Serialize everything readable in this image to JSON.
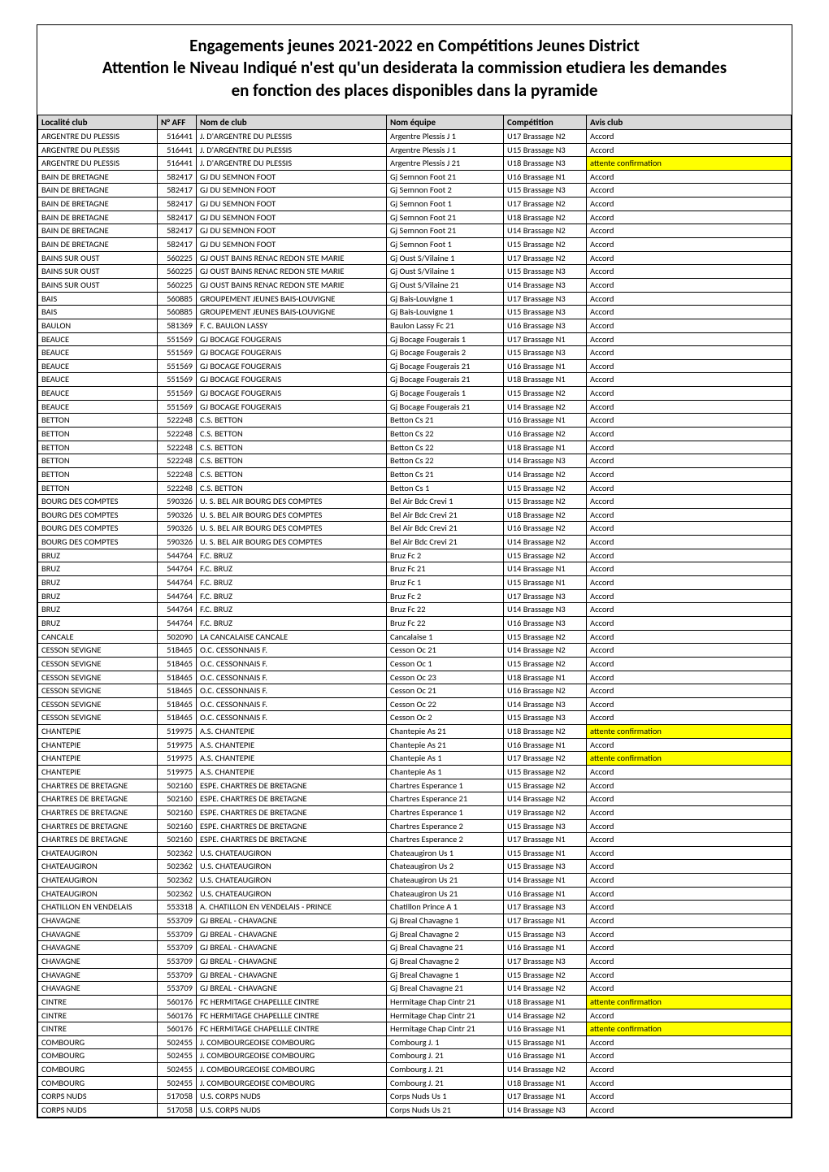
{
  "title": [
    "Engagements jeunes 2021-2022 en Compétitions Jeunes District",
    "Attention le Niveau Indiqué n'est qu'un desiderata la commission etudiera les demandes",
    "en fonction des places disponibles dans la pyramide"
  ],
  "columns": [
    "Localité club",
    "N° AFF",
    "Nom de club",
    "Nom équipe",
    "Compétition",
    "Avis club"
  ],
  "highlight_color": "#ffff00",
  "header_bg": "#d9d9d9",
  "rows": [
    {
      "loc": "ARGENTRE DU PLESSIS",
      "aff": "516441",
      "club": "J. D'ARGENTRE DU PLESSIS",
      "equipe": "Argentre Plessis J 1",
      "comp": "U17 Brassage N2",
      "avis": "Accord",
      "hl": false
    },
    {
      "loc": "ARGENTRE DU PLESSIS",
      "aff": "516441",
      "club": "J. D'ARGENTRE DU PLESSIS",
      "equipe": "Argentre Plessis J 1",
      "comp": "U15 Brassage N3",
      "avis": "Accord",
      "hl": false
    },
    {
      "loc": "ARGENTRE DU PLESSIS",
      "aff": "516441",
      "club": "J. D'ARGENTRE DU PLESSIS",
      "equipe": "Argentre Plessis J 21",
      "comp": "U18 Brassage N3",
      "avis": "attente confirmation",
      "hl": true
    },
    {
      "loc": "BAIN DE BRETAGNE",
      "aff": "582417",
      "club": "GJ DU SEMNON FOOT",
      "equipe": "Gj Semnon Foot 21",
      "comp": "U16 Brassage N1",
      "avis": "Accord",
      "hl": false
    },
    {
      "loc": "BAIN DE BRETAGNE",
      "aff": "582417",
      "club": "GJ DU SEMNON FOOT",
      "equipe": "Gj Semnon Foot 2",
      "comp": "U15 Brassage N3",
      "avis": "Accord",
      "hl": false
    },
    {
      "loc": "BAIN DE BRETAGNE",
      "aff": "582417",
      "club": "GJ DU SEMNON FOOT",
      "equipe": "Gj Semnon Foot 1",
      "comp": "U17 Brassage N2",
      "avis": "Accord",
      "hl": false
    },
    {
      "loc": "BAIN DE BRETAGNE",
      "aff": "582417",
      "club": "GJ DU SEMNON FOOT",
      "equipe": "Gj Semnon Foot 21",
      "comp": "U18 Brassage N2",
      "avis": "Accord",
      "hl": false
    },
    {
      "loc": "BAIN DE BRETAGNE",
      "aff": "582417",
      "club": "GJ DU SEMNON FOOT",
      "equipe": "Gj Semnon Foot 21",
      "comp": "U14 Brassage N2",
      "avis": "Accord",
      "hl": false
    },
    {
      "loc": "BAIN DE BRETAGNE",
      "aff": "582417",
      "club": "GJ DU SEMNON FOOT",
      "equipe": "Gj Semnon Foot 1",
      "comp": "U15 Brassage N2",
      "avis": "Accord",
      "hl": false
    },
    {
      "loc": "BAINS SUR OUST",
      "aff": "560225",
      "club": "GJ OUST BAINS RENAC REDON STE MARIE",
      "equipe": "Gj Oust S/Vilaine 1",
      "comp": "U17 Brassage N2",
      "avis": "Accord",
      "hl": false
    },
    {
      "loc": "BAINS SUR OUST",
      "aff": "560225",
      "club": "GJ OUST BAINS RENAC REDON STE MARIE",
      "equipe": "Gj Oust S/Vilaine 1",
      "comp": "U15 Brassage N3",
      "avis": "Accord",
      "hl": false
    },
    {
      "loc": "BAINS SUR OUST",
      "aff": "560225",
      "club": "GJ OUST BAINS RENAC REDON STE MARIE",
      "equipe": "Gj Oust S/Vilaine 21",
      "comp": "U14 Brassage N3",
      "avis": "Accord",
      "hl": false
    },
    {
      "loc": "BAIS",
      "aff": "560885",
      "club": "GROUPEMENT JEUNES BAIS-LOUVIGNE",
      "equipe": "Gj Bais-Louvigne 1",
      "comp": "U17 Brassage N3",
      "avis": "Accord",
      "hl": false
    },
    {
      "loc": "BAIS",
      "aff": "560885",
      "club": "GROUPEMENT JEUNES BAIS-LOUVIGNE",
      "equipe": "Gj Bais-Louvigne 1",
      "comp": "U15 Brassage N3",
      "avis": "Accord",
      "hl": false
    },
    {
      "loc": "BAULON",
      "aff": "581369",
      "club": "F. C. BAULON LASSY",
      "equipe": "Baulon Lassy Fc 21",
      "comp": "U16 Brassage N3",
      "avis": "Accord",
      "hl": false
    },
    {
      "loc": "BEAUCE",
      "aff": "551569",
      "club": "GJ BOCAGE FOUGERAIS",
      "equipe": "Gj Bocage Fougerais 1",
      "comp": "U17 Brassage N1",
      "avis": "Accord",
      "hl": false
    },
    {
      "loc": "BEAUCE",
      "aff": "551569",
      "club": "GJ BOCAGE FOUGERAIS",
      "equipe": "Gj Bocage Fougerais 2",
      "comp": "U15 Brassage N3",
      "avis": "Accord",
      "hl": false
    },
    {
      "loc": "BEAUCE",
      "aff": "551569",
      "club": "GJ BOCAGE FOUGERAIS",
      "equipe": "Gj Bocage Fougerais 21",
      "comp": "U16 Brassage N1",
      "avis": "Accord",
      "hl": false
    },
    {
      "loc": "BEAUCE",
      "aff": "551569",
      "club": "GJ BOCAGE FOUGERAIS",
      "equipe": "Gj Bocage Fougerais 21",
      "comp": "U18 Brassage N1",
      "avis": "Accord",
      "hl": false
    },
    {
      "loc": "BEAUCE",
      "aff": "551569",
      "club": "GJ BOCAGE FOUGERAIS",
      "equipe": "Gj Bocage Fougerais 1",
      "comp": "U15 Brassage N2",
      "avis": "Accord",
      "hl": false
    },
    {
      "loc": "BEAUCE",
      "aff": "551569",
      "club": "GJ BOCAGE FOUGERAIS",
      "equipe": "Gj Bocage Fougerais 21",
      "comp": "U14 Brassage N2",
      "avis": "Accord",
      "hl": false
    },
    {
      "loc": "BETTON",
      "aff": "522248",
      "club": "C.S. BETTON",
      "equipe": "Betton Cs 21",
      "comp": "U16 Brassage N1",
      "avis": "Accord",
      "hl": false
    },
    {
      "loc": "BETTON",
      "aff": "522248",
      "club": "C.S. BETTON",
      "equipe": "Betton Cs 22",
      "comp": "U16 Brassage N2",
      "avis": "Accord",
      "hl": false
    },
    {
      "loc": "BETTON",
      "aff": "522248",
      "club": "C.S. BETTON",
      "equipe": "Betton Cs 22",
      "comp": "U18 Brassage N1",
      "avis": "Accord",
      "hl": false
    },
    {
      "loc": "BETTON",
      "aff": "522248",
      "club": "C.S. BETTON",
      "equipe": "Betton Cs 22",
      "comp": "U14 Brassage N3",
      "avis": "Accord",
      "hl": false
    },
    {
      "loc": "BETTON",
      "aff": "522248",
      "club": "C.S. BETTON",
      "equipe": "Betton Cs 21",
      "comp": "U14 Brassage N2",
      "avis": "Accord",
      "hl": false
    },
    {
      "loc": "BETTON",
      "aff": "522248",
      "club": "C.S. BETTON",
      "equipe": "Betton Cs 1",
      "comp": "U15 Brassage N2",
      "avis": "Accord",
      "hl": false
    },
    {
      "loc": "BOURG DES COMPTES",
      "aff": "590326",
      "club": "U. S. BEL AIR BOURG DES COMPTES",
      "equipe": "Bel Air Bdc  Crevi 1",
      "comp": "U15 Brassage N2",
      "avis": "Accord",
      "hl": false
    },
    {
      "loc": "BOURG DES COMPTES",
      "aff": "590326",
      "club": "U. S. BEL AIR BOURG DES COMPTES",
      "equipe": "Bel Air Bdc  Crevi 21",
      "comp": "U18 Brassage N2",
      "avis": "Accord",
      "hl": false
    },
    {
      "loc": "BOURG DES COMPTES",
      "aff": "590326",
      "club": "U. S. BEL AIR BOURG DES COMPTES",
      "equipe": "Bel Air Bdc  Crevi 21",
      "comp": "U16 Brassage N2",
      "avis": "Accord",
      "hl": false
    },
    {
      "loc": "BOURG DES COMPTES",
      "aff": "590326",
      "club": "U. S. BEL AIR BOURG DES COMPTES",
      "equipe": "Bel Air Bdc  Crevi 21",
      "comp": "U14 Brassage N2",
      "avis": "Accord",
      "hl": false
    },
    {
      "loc": "BRUZ",
      "aff": "544764",
      "club": "F.C. BRUZ",
      "equipe": "Bruz Fc 2",
      "comp": "U15 Brassage N2",
      "avis": "Accord",
      "hl": false
    },
    {
      "loc": "BRUZ",
      "aff": "544764",
      "club": "F.C. BRUZ",
      "equipe": "Bruz Fc 21",
      "comp": "U14 Brassage N1",
      "avis": "Accord",
      "hl": false
    },
    {
      "loc": "BRUZ",
      "aff": "544764",
      "club": "F.C. BRUZ",
      "equipe": "Bruz Fc 1",
      "comp": "U15 Brassage N1",
      "avis": "Accord",
      "hl": false
    },
    {
      "loc": "BRUZ",
      "aff": "544764",
      "club": "F.C. BRUZ",
      "equipe": "Bruz Fc 2",
      "comp": "U17 Brassage N3",
      "avis": "Accord",
      "hl": false
    },
    {
      "loc": "BRUZ",
      "aff": "544764",
      "club": "F.C. BRUZ",
      "equipe": "Bruz Fc 22",
      "comp": "U14 Brassage N3",
      "avis": "Accord",
      "hl": false
    },
    {
      "loc": "BRUZ",
      "aff": "544764",
      "club": "F.C. BRUZ",
      "equipe": "Bruz Fc 22",
      "comp": "U16 Brassage N3",
      "avis": "Accord",
      "hl": false
    },
    {
      "loc": "CANCALE",
      "aff": "502090",
      "club": "LA CANCALAISE CANCALE",
      "equipe": "Cancalaise 1",
      "comp": "U15 Brassage N2",
      "avis": "Accord",
      "hl": false
    },
    {
      "loc": "CESSON SEVIGNE",
      "aff": "518465",
      "club": "O.C. CESSONNAIS F.",
      "equipe": "Cesson Oc 21",
      "comp": "U14 Brassage N2",
      "avis": "Accord",
      "hl": false
    },
    {
      "loc": "CESSON SEVIGNE",
      "aff": "518465",
      "club": "O.C. CESSONNAIS F.",
      "equipe": "Cesson Oc 1",
      "comp": "U15 Brassage N2",
      "avis": "Accord",
      "hl": false
    },
    {
      "loc": "CESSON SEVIGNE",
      "aff": "518465",
      "club": "O.C. CESSONNAIS F.",
      "equipe": "Cesson Oc 23",
      "comp": "U18 Brassage N1",
      "avis": "Accord",
      "hl": false
    },
    {
      "loc": "CESSON SEVIGNE",
      "aff": "518465",
      "club": "O.C. CESSONNAIS F.",
      "equipe": "Cesson Oc 21",
      "comp": "U16 Brassage N2",
      "avis": "Accord",
      "hl": false
    },
    {
      "loc": "CESSON SEVIGNE",
      "aff": "518465",
      "club": "O.C. CESSONNAIS F.",
      "equipe": "Cesson Oc 22",
      "comp": "U14 Brassage N3",
      "avis": "Accord",
      "hl": false
    },
    {
      "loc": "CESSON SEVIGNE",
      "aff": "518465",
      "club": "O.C. CESSONNAIS F.",
      "equipe": "Cesson Oc 2",
      "comp": "U15 Brassage N3",
      "avis": "Accord",
      "hl": false
    },
    {
      "loc": "CHANTEPIE",
      "aff": "519975",
      "club": "A.S. CHANTEPIE",
      "equipe": "Chantepie As 21",
      "comp": "U18 Brassage N2",
      "avis": "attente confirmation",
      "hl": true
    },
    {
      "loc": "CHANTEPIE",
      "aff": "519975",
      "club": "A.S. CHANTEPIE",
      "equipe": "Chantepie As 21",
      "comp": "U16 Brassage N1",
      "avis": "Accord",
      "hl": false
    },
    {
      "loc": "CHANTEPIE",
      "aff": "519975",
      "club": "A.S. CHANTEPIE",
      "equipe": "Chantepie As 1",
      "comp": "U17 Brassage N2",
      "avis": "attente confirmation",
      "hl": true
    },
    {
      "loc": "CHANTEPIE",
      "aff": "519975",
      "club": "A.S. CHANTEPIE",
      "equipe": "Chantepie As 1",
      "comp": "U15 Brassage N2",
      "avis": "Accord",
      "hl": false
    },
    {
      "loc": "CHARTRES DE BRETAGNE",
      "aff": "502160",
      "club": "ESPE. CHARTRES DE BRETAGNE",
      "equipe": "Chartres Esperance 1",
      "comp": "U15 Brassage N2",
      "avis": "Accord",
      "hl": false
    },
    {
      "loc": "CHARTRES DE BRETAGNE",
      "aff": "502160",
      "club": "ESPE. CHARTRES DE BRETAGNE",
      "equipe": "Chartres Esperance 21",
      "comp": "U14 Brassage N2",
      "avis": "Accord",
      "hl": false
    },
    {
      "loc": "CHARTRES DE BRETAGNE",
      "aff": "502160",
      "club": "ESPE. CHARTRES DE BRETAGNE",
      "equipe": "Chartres Esperance 1",
      "comp": "U19 Brassage N2",
      "avis": "Accord",
      "hl": false
    },
    {
      "loc": "CHARTRES DE BRETAGNE",
      "aff": "502160",
      "club": "ESPE. CHARTRES DE BRETAGNE",
      "equipe": "Chartres Esperance 2",
      "comp": "U15 Brassage N3",
      "avis": "Accord",
      "hl": false
    },
    {
      "loc": "CHARTRES DE BRETAGNE",
      "aff": "502160",
      "club": "ESPE. CHARTRES DE BRETAGNE",
      "equipe": "Chartres Esperance 2",
      "comp": "U17 Brassage N1",
      "avis": "Accord",
      "hl": false
    },
    {
      "loc": "CHATEAUGIRON",
      "aff": "502362",
      "club": "U.S. CHATEAUGIRON",
      "equipe": "Chateaugiron Us 1",
      "comp": "U15 Brassage N1",
      "avis": "Accord",
      "hl": false
    },
    {
      "loc": "CHATEAUGIRON",
      "aff": "502362",
      "club": "U.S. CHATEAUGIRON",
      "equipe": "Chateaugiron Us 2",
      "comp": "U15 Brassage N3",
      "avis": "Accord",
      "hl": false
    },
    {
      "loc": "CHATEAUGIRON",
      "aff": "502362",
      "club": "U.S. CHATEAUGIRON",
      "equipe": "Chateaugiron Us 21",
      "comp": "U14 Brassage N1",
      "avis": "Accord",
      "hl": false
    },
    {
      "loc": "CHATEAUGIRON",
      "aff": "502362",
      "club": "U.S. CHATEAUGIRON",
      "equipe": "Chateaugiron Us 21",
      "comp": "U16 Brassage N1",
      "avis": "Accord",
      "hl": false
    },
    {
      "loc": "CHATILLON EN VENDELAIS",
      "aff": "553318",
      "club": "A. CHATILLON EN VENDELAIS - PRINCE",
      "equipe": "Chatillon Prince A 1",
      "comp": "U17 Brassage N3",
      "avis": "Accord",
      "hl": false
    },
    {
      "loc": "CHAVAGNE",
      "aff": "553709",
      "club": "GJ  BREAL - CHAVAGNE",
      "equipe": "Gj Breal Chavagne 1",
      "comp": "U17 Brassage N1",
      "avis": "Accord",
      "hl": false
    },
    {
      "loc": "CHAVAGNE",
      "aff": "553709",
      "club": "GJ  BREAL - CHAVAGNE",
      "equipe": "Gj Breal Chavagne 2",
      "comp": "U15 Brassage N3",
      "avis": "Accord",
      "hl": false
    },
    {
      "loc": "CHAVAGNE",
      "aff": "553709",
      "club": "GJ  BREAL - CHAVAGNE",
      "equipe": "Gj Breal Chavagne 21",
      "comp": "U16 Brassage N1",
      "avis": "Accord",
      "hl": false
    },
    {
      "loc": "CHAVAGNE",
      "aff": "553709",
      "club": "GJ  BREAL - CHAVAGNE",
      "equipe": "Gj Breal Chavagne 2",
      "comp": "U17 Brassage N3",
      "avis": "Accord",
      "hl": false
    },
    {
      "loc": "CHAVAGNE",
      "aff": "553709",
      "club": "GJ  BREAL - CHAVAGNE",
      "equipe": "Gj Breal Chavagne 1",
      "comp": "U15 Brassage N2",
      "avis": "Accord",
      "hl": false
    },
    {
      "loc": "CHAVAGNE",
      "aff": "553709",
      "club": "GJ  BREAL - CHAVAGNE",
      "equipe": "Gj Breal Chavagne 21",
      "comp": "U14 Brassage N2",
      "avis": "Accord",
      "hl": false
    },
    {
      "loc": "CINTRE",
      "aff": "560176",
      "club": "FC HERMITAGE CHAPELLLE CINTRE",
      "equipe": "Hermitage Chap Cintr 21",
      "comp": "U18 Brassage N1",
      "avis": "attente confirmation",
      "hl": true
    },
    {
      "loc": "CINTRE",
      "aff": "560176",
      "club": "FC HERMITAGE CHAPELLLE CINTRE",
      "equipe": "Hermitage Chap Cintr 21",
      "comp": "U14 Brassage N2",
      "avis": "Accord",
      "hl": false
    },
    {
      "loc": "CINTRE",
      "aff": "560176",
      "club": "FC HERMITAGE CHAPELLLE CINTRE",
      "equipe": "Hermitage Chap Cintr 21",
      "comp": "U16 Brassage N1",
      "avis": "attente confirmation",
      "hl": true
    },
    {
      "loc": "COMBOURG",
      "aff": "502455",
      "club": "J. COMBOURGEOISE COMBOURG",
      "equipe": "Combourg J. 1",
      "comp": "U15 Brassage N1",
      "avis": "Accord",
      "hl": false
    },
    {
      "loc": "COMBOURG",
      "aff": "502455",
      "club": "J. COMBOURGEOISE COMBOURG",
      "equipe": "Combourg J. 21",
      "comp": "U16 Brassage N1",
      "avis": "Accord",
      "hl": false
    },
    {
      "loc": "COMBOURG",
      "aff": "502455",
      "club": "J. COMBOURGEOISE COMBOURG",
      "equipe": "Combourg J. 21",
      "comp": "U14 Brassage N2",
      "avis": "Accord",
      "hl": false
    },
    {
      "loc": "COMBOURG",
      "aff": "502455",
      "club": "J. COMBOURGEOISE COMBOURG",
      "equipe": "Combourg J. 21",
      "comp": "U18 Brassage N1",
      "avis": "Accord",
      "hl": false
    },
    {
      "loc": "CORPS NUDS",
      "aff": "517058",
      "club": "U.S. CORPS NUDS",
      "equipe": "Corps Nuds Us 1",
      "comp": "U17 Brassage N1",
      "avis": "Accord",
      "hl": false
    },
    {
      "loc": "CORPS NUDS",
      "aff": "517058",
      "club": "U.S. CORPS NUDS",
      "equipe": "Corps Nuds Us 21",
      "comp": "U14 Brassage N3",
      "avis": "Accord",
      "hl": false
    }
  ]
}
